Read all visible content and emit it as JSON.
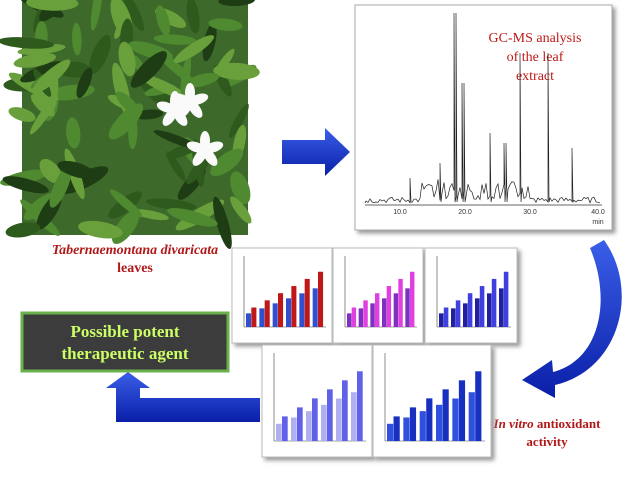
{
  "panels": {
    "plant": {
      "caption_italic": "Tabernaemontana divaricata",
      "caption": "leaves"
    },
    "gcms": {
      "title_lines": [
        "GC-MS analysis",
        "of the leaf",
        "extract"
      ],
      "x_tick_labels": [
        "10.0",
        "20.0",
        "30.0",
        "40.0"
      ],
      "x_unit": "min"
    },
    "antioxidant": {
      "caption_italic": "In vitro",
      "caption": "antioxidant",
      "caption_line2": "activity"
    },
    "result": {
      "lines": [
        "Possible potent",
        "therapeutic agent"
      ]
    }
  }
}
